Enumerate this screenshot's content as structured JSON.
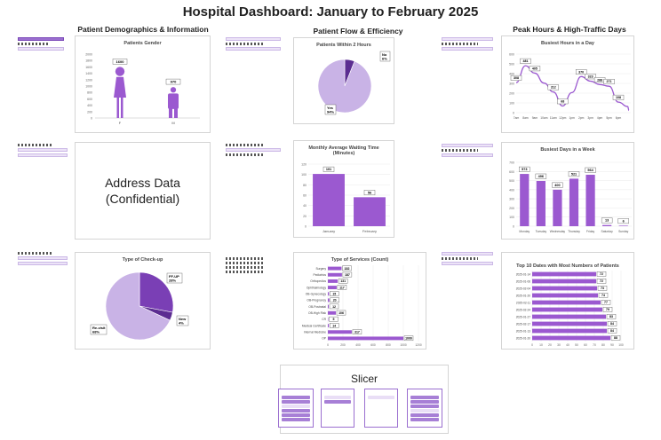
{
  "dashboard_title": "Hospital Dashboard: January to February 2025",
  "sections": {
    "demographics": "Patient Demographics & Information",
    "flow": "Patient Flow & Efficiency",
    "peak": "Peak Hours & High-Traffic Days"
  },
  "address_card": {
    "line1": "Address Data",
    "line2": "(Confidential)"
  },
  "slicer": {
    "title": "Slicer"
  },
  "colors": {
    "primary": "#9b59d0",
    "light": "#c9b3e6",
    "dark": "#7a3fb5"
  },
  "chart_data": [
    {
      "id": "gender",
      "type": "bar",
      "title": "Patients Gender",
      "categories": [
        "F",
        "M"
      ],
      "values": [
        1600,
        970
      ],
      "ylim": [
        0,
        2000
      ],
      "yticks": [
        0,
        200,
        400,
        600,
        800,
        1000,
        1200,
        1400,
        1600,
        1800,
        2000
      ],
      "icons": [
        "female-person",
        "male-person"
      ]
    },
    {
      "id": "within2h",
      "type": "pie",
      "title": "Patients Within 2 Hours",
      "slices": [
        {
          "label": "No",
          "value": 6
        },
        {
          "label": "Yes",
          "value": 94
        }
      ],
      "labels": [
        "No\n6%",
        "Yes\n94%"
      ]
    },
    {
      "id": "busyhours",
      "type": "line",
      "title": "Busiest Hours in a Day",
      "categories": [
        "7am",
        "8am",
        "9am",
        "10am",
        "11am",
        "12pm",
        "1pm",
        "2pm",
        "3pm",
        "4pm",
        "5pm",
        "6pm",
        "7pm",
        "8pm"
      ],
      "values": [
        308,
        481,
        405,
        303,
        212,
        68,
        206,
        370,
        323,
        288,
        271,
        108,
        63,
        23
      ],
      "ylim": [
        0,
        600
      ],
      "yticks": [
        0,
        100,
        200,
        300,
        400,
        500,
        600
      ],
      "show_ticks": [
        "7am",
        "8am",
        "9am",
        "10am",
        "11am",
        "12pm",
        "1pm",
        "2pm",
        "3pm",
        "4pm",
        "5pm",
        "6pm"
      ]
    },
    {
      "id": "waiting",
      "type": "bar",
      "title": "Monthly Average Waiting Time (Minutes)",
      "categories": [
        "January",
        "February"
      ],
      "values": [
        101,
        56
      ],
      "ylim": [
        0,
        120
      ],
      "yticks": [
        0,
        20,
        40,
        60,
        80,
        100,
        120
      ]
    },
    {
      "id": "busydays",
      "type": "bar",
      "title": "Busiest Days in a Week",
      "categories": [
        "Monday",
        "Tuesday",
        "Wednesday",
        "Thursday",
        "Friday",
        "Saturday",
        "Sunday"
      ],
      "values": [
        573,
        496,
        400,
        521,
        564,
        13,
        6
      ],
      "ylim": [
        0,
        700
      ],
      "yticks": [
        0,
        100,
        200,
        300,
        400,
        500,
        600,
        700
      ]
    },
    {
      "id": "checkup",
      "type": "pie",
      "title": "Type of Check-up",
      "slices": [
        {
          "label": "FF-UP",
          "value": 28
        },
        {
          "label": "New",
          "value": 4
        },
        {
          "label": "Re-visit",
          "value": 68
        }
      ],
      "labels": [
        "FF-UP\n28%",
        "New\n4%",
        "Re-visit\n68%"
      ]
    },
    {
      "id": "services",
      "type": "bar",
      "title": "Type of Services (Count)",
      "orientation": "horizontal",
      "categories": [
        "Surgery",
        "Pediatrics",
        "Orthopedics",
        "Ophthalmology",
        "OB-Gynecology",
        "OB-Pregnancy",
        "OB-Postnatal",
        "OB-High Risk",
        "CR",
        "Medical Certificate",
        "Internal Medicine",
        "OP"
      ],
      "values": [
        182,
        187,
        131,
        117,
        15,
        20,
        12,
        106,
        5,
        14,
        317,
        1000
      ],
      "xlim": [
        0,
        1200
      ],
      "xticks": [
        0,
        200,
        400,
        600,
        800,
        1000,
        1200
      ]
    },
    {
      "id": "topdates",
      "type": "bar",
      "title": "Top 10 Dates with Most Numbers of Patients",
      "orientation": "horizontal",
      "categories": [
        "2025-01-14",
        "2025-01-06",
        "2025-02-04",
        "2025-01-20",
        "2025-02-11",
        "2025-02-24",
        "2025-01-27",
        "2025-02-17",
        "2025-01-13",
        "2025-01-20"
      ],
      "values": [
        72,
        72,
        73,
        74,
        77,
        79,
        83,
        84,
        84,
        88
      ],
      "xlim": [
        0,
        100
      ],
      "xticks": [
        0,
        10,
        20,
        30,
        40,
        50,
        60,
        70,
        80,
        90,
        100
      ]
    }
  ]
}
